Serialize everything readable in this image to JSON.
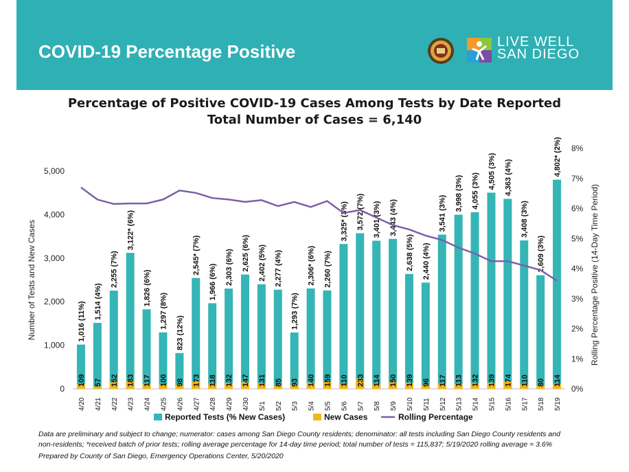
{
  "header": {
    "title": "COVID-19 Percentage Positive",
    "logo_line1": "LIVE WELL",
    "logo_line2": "SAN DIEGO",
    "colors": {
      "banner": "#2fb0b4",
      "text": "#ffffff"
    }
  },
  "chart_data": {
    "type": "bar",
    "title": "Percentage of Positive COVID-19 Cases Among Tests by Date Reported",
    "subtitle": "Total Number of Cases = 6,140",
    "ylabel": "Number of Tests and New Cases",
    "y2label": "Rolling Percentage Positive (14-Day Time Period)",
    "ylim": [
      0,
      5000
    ],
    "y2lim": [
      0,
      8
    ],
    "yticks": [
      "0",
      "1,000",
      "2,000",
      "3,000",
      "4,000",
      "5,000"
    ],
    "y2ticks": [
      "0%",
      "1%",
      "2%",
      "3%",
      "4%",
      "5%",
      "6%",
      "7%",
      "8%"
    ],
    "categories": [
      "4/20",
      "4/21",
      "4/22",
      "4/23",
      "4/24",
      "4/25",
      "4/26",
      "4/27",
      "4/28",
      "4/29",
      "4/30",
      "5/1",
      "5/2",
      "5/3",
      "5/4",
      "5/5",
      "5/6",
      "5/7",
      "5/8",
      "5/9",
      "5/10",
      "5/11",
      "5/12",
      "5/13",
      "5/14",
      "5/15",
      "5/16",
      "5/17",
      "5/18",
      "5/19"
    ],
    "series": [
      {
        "name": "Reported Tests (% New Cases)",
        "color": "#35b5b5",
        "values": [
          1016,
          1514,
          2255,
          3122,
          1826,
          1297,
          823,
          2545,
          1966,
          2303,
          2625,
          2402,
          2277,
          1293,
          2306,
          2260,
          3325,
          3572,
          3401,
          3443,
          2638,
          2440,
          3541,
          3998,
          4055,
          4505,
          4363,
          3408,
          2609,
          4802
        ],
        "labels": [
          "1,016 (11%)",
          "1,514 (4%)",
          "2,255 (7%)",
          "3,122* (6%)",
          "1,826 (6%)",
          "1,297 (8%)",
          "823 (12%)",
          "2,545* (7%)",
          "1,966 (6%)",
          "2,303 (6%)",
          "2,625 (6%)",
          "2,402 (5%)",
          "2,277 (4%)",
          "1,293 (7%)",
          "2,306* (6%)",
          "2,260 (7%)",
          "3,325* (3%)",
          "3,572 (7%)",
          "3,401 (3%)",
          "3,443 (4%)",
          "2,638 (5%)",
          "2,440 (4%)",
          "3,541 (3%)",
          "3,998 (3%)",
          "4,055 (3%)",
          "4,505 (3%)",
          "4,363 (4%)",
          "3,408 (3%)",
          "2,609 (3%)",
          "4,802* (2%)"
        ]
      },
      {
        "name": "New Cases",
        "color": "#f5b618",
        "values": [
          109,
          57,
          152,
          183,
          117,
          100,
          98,
          173,
          118,
          132,
          147,
          131,
          85,
          93,
          140,
          159,
          110,
          233,
          114,
          150,
          139,
          96,
          117,
          113,
          132,
          139,
          174,
          110,
          80,
          114
        ]
      },
      {
        "name": "Rolling Percentage",
        "color": "#7b5fa8",
        "axis": "right",
        "values": [
          6.7,
          6.3,
          6.15,
          6.17,
          6.17,
          6.3,
          6.6,
          6.52,
          6.35,
          6.3,
          6.22,
          6.28,
          6.08,
          6.22,
          6.05,
          6.25,
          5.85,
          5.95,
          5.7,
          5.45,
          5.3,
          5.1,
          4.95,
          4.7,
          4.5,
          4.25,
          4.25,
          4.1,
          3.95,
          3.6
        ]
      }
    ],
    "legend_position": "bottom"
  },
  "notes": {
    "line1": "Data are preliminary and subject to change; numerator: cases among San Diego County residents; denominator: all tests including San Diego County residents and",
    "line2": "non-residents; *received batch of prior tests; rolling average percentage for 14-day time period; total number of tests = 115,837; 5/19/2020 rolling average = 3.6%",
    "line3": "Prepared by County of San Diego, Emergency Operations Center, 5/20/2020"
  }
}
